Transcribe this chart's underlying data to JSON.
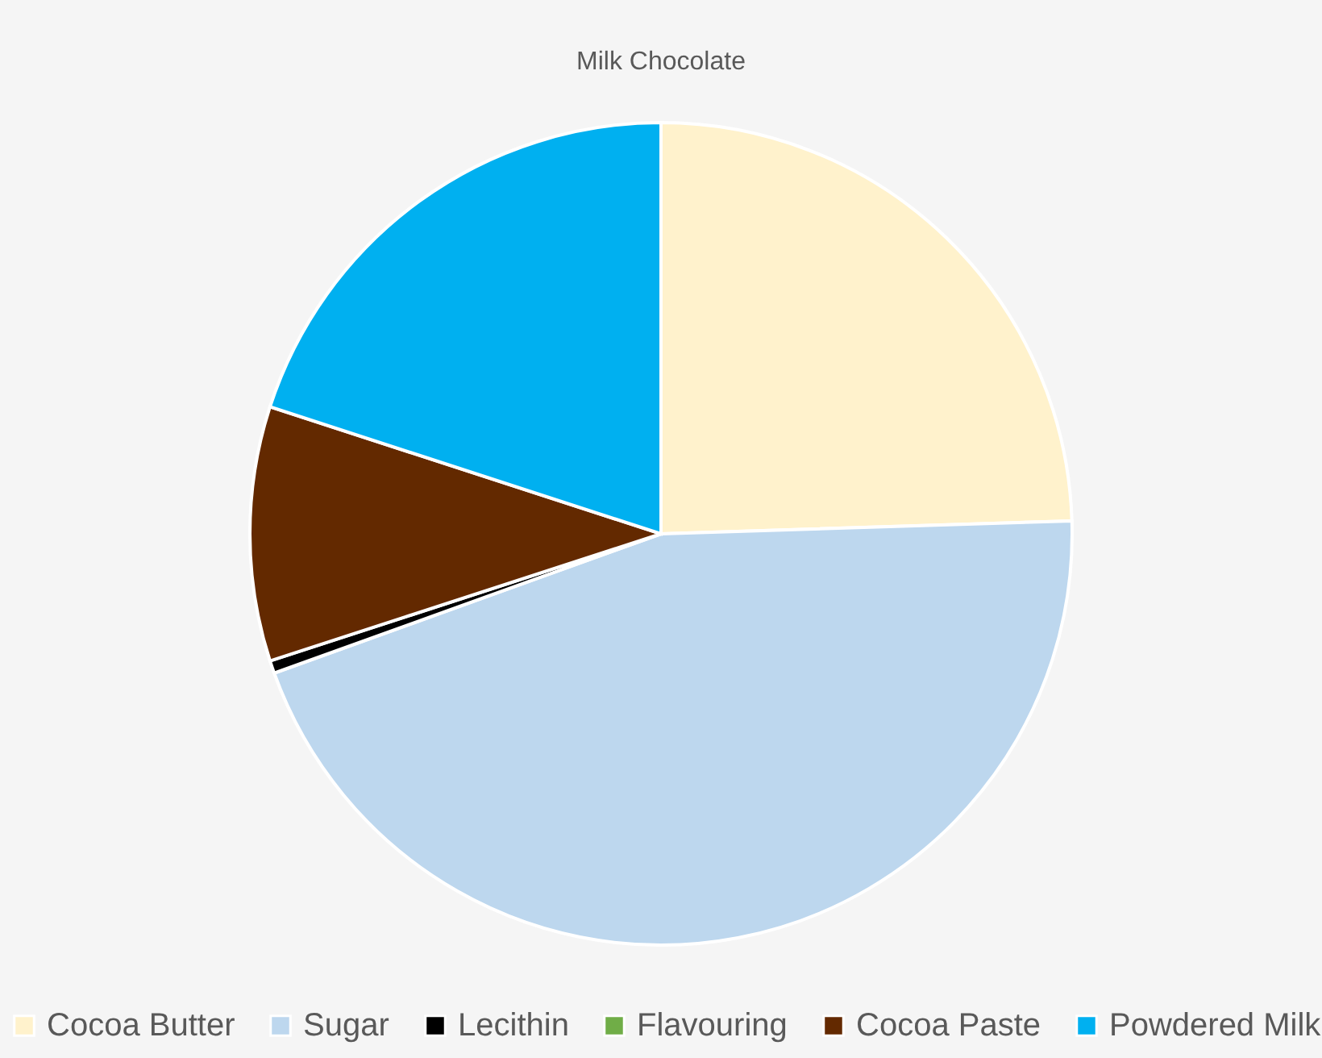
{
  "chart_data": {
    "type": "pie",
    "title": "Milk Chocolate",
    "categories": [
      "Cocoa Butter",
      "Sugar",
      "Lecithin",
      "Flavouring",
      "Cocoa Paste",
      "Powdered Milk"
    ],
    "values": [
      24.5,
      45,
      0.5,
      null,
      10,
      20
    ],
    "colors": [
      "#fff2cc",
      "#bdd7ee",
      "#000000",
      "#70ad47",
      "#632900",
      "#00b0f0"
    ],
    "legend": "bottom"
  }
}
